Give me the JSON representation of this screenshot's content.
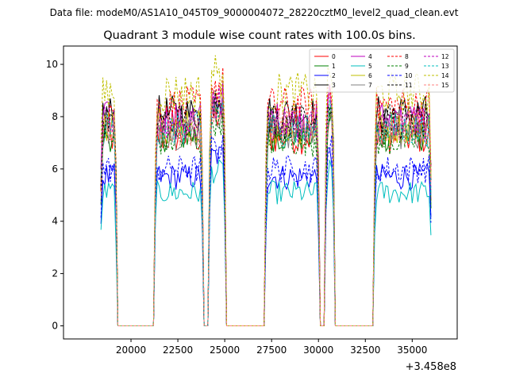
{
  "figure": {
    "suptitle": "Data file: modeM0/AS1A10_045T09_9000004072_28220cztM0_level2_quad_clean.evt"
  },
  "chart_data": {
    "type": "line",
    "title": "Quadrant 3 module wise count rates with 100.0s bins.",
    "xlabel": "",
    "ylabel": "",
    "x_offset_label": "+3.458e8",
    "xlim": [
      16400,
      37400
    ],
    "ylim": [
      -0.5,
      10.7
    ],
    "x_ticks": [
      20000,
      22500,
      25000,
      27500,
      30000,
      32500,
      35000
    ],
    "x_tick_labels": [
      "20000",
      "22500",
      "25000",
      "27500",
      "30000",
      "32500",
      "35000"
    ],
    "y_ticks": [
      0,
      2,
      4,
      6,
      8,
      10
    ],
    "y_tick_labels": [
      "0",
      "2",
      "4",
      "6",
      "8",
      "10"
    ],
    "grid": false,
    "legend_position": "top-right",
    "legend_columns": 4,
    "bin_width_s": 100,
    "good_time_segments": [
      [
        18400,
        19200
      ],
      [
        21300,
        23800
      ],
      [
        24200,
        25000
      ],
      [
        27200,
        30000
      ],
      [
        30400,
        30800
      ],
      [
        33000,
        36000
      ]
    ],
    "series": [
      {
        "name": "0",
        "color": "#ff0000",
        "dash": "solid",
        "level": 7.2
      },
      {
        "name": "1",
        "color": "#008000",
        "dash": "solid",
        "level": 7.3
      },
      {
        "name": "2",
        "color": "#0000ff",
        "dash": "solid",
        "level": 5.7
      },
      {
        "name": "3",
        "color": "#000000",
        "dash": "solid",
        "level": 8.1
      },
      {
        "name": "4",
        "color": "#bf00bf",
        "dash": "solid",
        "level": 7.9
      },
      {
        "name": "5",
        "color": "#00bfbf",
        "dash": "solid",
        "level": 5.1
      },
      {
        "name": "6",
        "color": "#bfbf00",
        "dash": "solid",
        "level": 7.6
      },
      {
        "name": "7",
        "color": "#808080",
        "dash": "solid",
        "level": 7.4
      },
      {
        "name": "8",
        "color": "#ff0000",
        "dash": "dashed",
        "level": 8.4
      },
      {
        "name": "9",
        "color": "#008000",
        "dash": "dashed",
        "level": 7.1
      },
      {
        "name": "10",
        "color": "#0000ff",
        "dash": "dashed",
        "level": 6.0
      },
      {
        "name": "11",
        "color": "#000000",
        "dash": "dashed",
        "level": 7.8
      },
      {
        "name": "12",
        "color": "#bf00bf",
        "dash": "dashed",
        "level": 7.7
      },
      {
        "name": "13",
        "color": "#00bfbf",
        "dash": "dashed",
        "level": 7.5
      },
      {
        "name": "14",
        "color": "#bfbf00",
        "dash": "dashed",
        "level": 8.9
      },
      {
        "name": "15",
        "color": "#ff8080",
        "dash": "dashed",
        "level": 7.6
      }
    ]
  }
}
